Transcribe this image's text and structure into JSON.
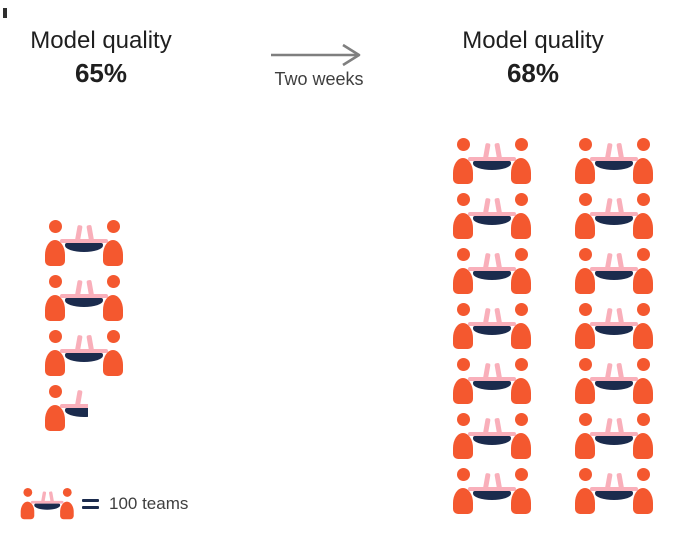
{
  "header": {
    "left": {
      "title": "Model quality",
      "value": "65%"
    },
    "right": {
      "title": "Model quality",
      "value": "68%"
    },
    "transition": {
      "label": "Two weeks",
      "arrow_color": "#7f7f7f"
    }
  },
  "legend": {
    "label": "100 teams"
  },
  "pictograph": {
    "colors": {
      "person": "#F4582F",
      "laptop": "#F9AFBA",
      "table": "#1B2B4D"
    },
    "left_grid": {
      "full_icons": 3,
      "half_icons": 1,
      "columns": 1
    },
    "right_grid": {
      "full_icons": 14,
      "half_icons": 0,
      "columns": 2
    }
  },
  "chart_data": {
    "type": "bar",
    "representation": "pictograph (ISOTYPE), 1 icon = 100 teams",
    "categories": [
      "Model quality 65%",
      "Model quality 68%"
    ],
    "values": [
      350,
      1400
    ],
    "icon_counts": [
      3.5,
      14
    ],
    "unit": "teams",
    "annotation": "Two weeks",
    "legend_entry": "1 icon = 100 teams",
    "layout_hint": "before/after comparison, left column single stack, right grid 2 columns x 7 rows"
  }
}
